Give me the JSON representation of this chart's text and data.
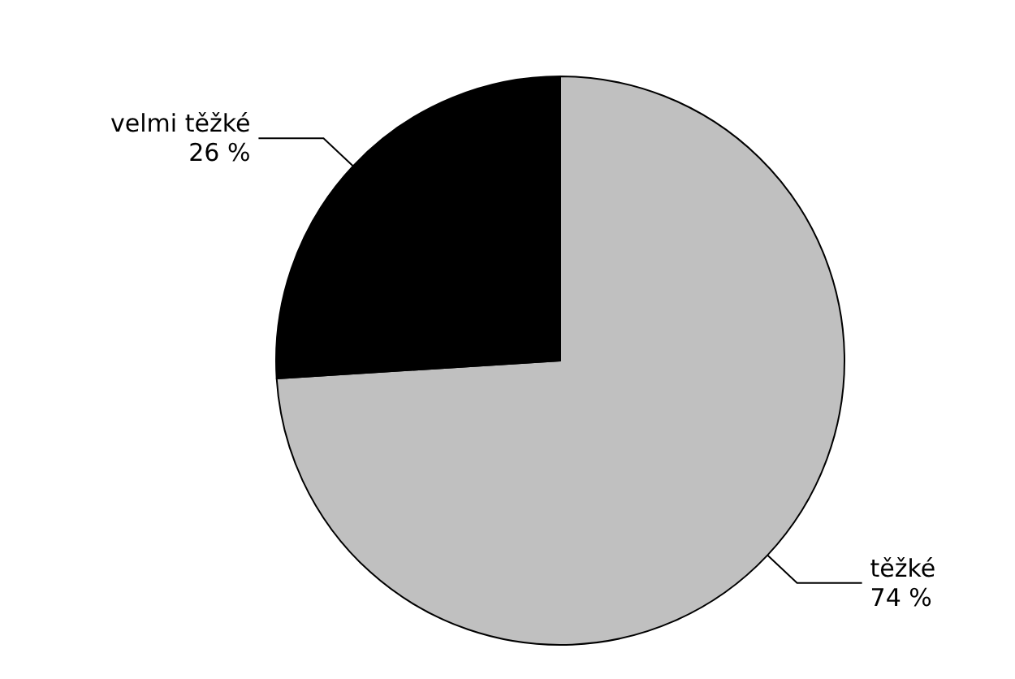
{
  "chart_data": {
    "type": "pie",
    "categories": [
      "těžké",
      "velmi těžké"
    ],
    "values": [
      74,
      26
    ],
    "colors": [
      "#c0c0c0",
      "#000000"
    ],
    "value_labels": [
      "74 %",
      "26 %"
    ]
  }
}
